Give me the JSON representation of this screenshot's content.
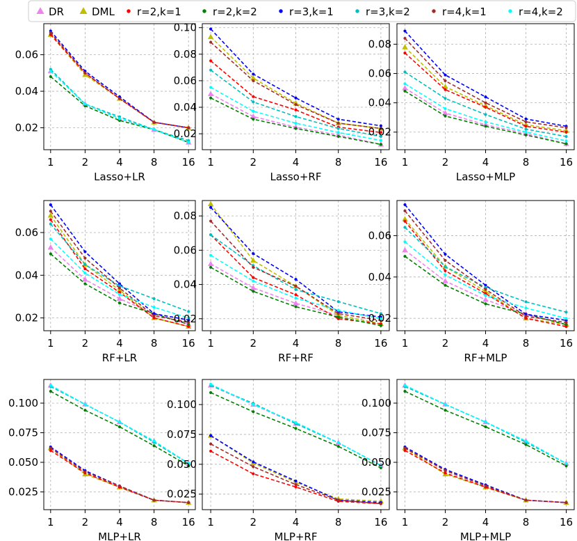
{
  "legend": {
    "items": [
      {
        "label": "DR",
        "color": "#ee82ee",
        "marker": "triangle"
      },
      {
        "label": "DML",
        "color": "#bfbf00",
        "marker": "triangle"
      },
      {
        "label": "r=2,k=1",
        "color": "#ff0000",
        "marker": "dot"
      },
      {
        "label": "r=2,k=2",
        "color": "#008000",
        "marker": "dot"
      },
      {
        "label": "r=3,k=1",
        "color": "#0000ff",
        "marker": "dot"
      },
      {
        "label": "r=3,k=2",
        "color": "#00bfbf",
        "marker": "dot"
      },
      {
        "label": "r=4,k=1",
        "color": "#a52a2a",
        "marker": "dot"
      },
      {
        "label": "r=4,k=2",
        "color": "#00ffff",
        "marker": "dot"
      }
    ]
  },
  "chart_data": [
    {
      "type": "line",
      "title": "",
      "xlabel": "Lasso+LR",
      "x": [
        1,
        2,
        4,
        8,
        16
      ],
      "xticks": [
        "1",
        "2",
        "4",
        "8",
        "16"
      ],
      "ylim": [
        0.008,
        0.077
      ],
      "yticks": [
        0.02,
        0.04,
        0.06
      ],
      "ytick_labels": [
        "0.02",
        "0.04",
        "0.06"
      ],
      "series": [
        {
          "name": "DR",
          "values": [
            0.051,
            0.033,
            0.025,
            0.019,
            0.012
          ]
        },
        {
          "name": "DML",
          "values": [
            0.071,
            0.049,
            0.036,
            0.023,
            0.02
          ]
        },
        {
          "name": "r=2,k=1",
          "values": [
            0.071,
            0.05,
            0.036,
            0.023,
            0.02
          ]
        },
        {
          "name": "r=2,k=2",
          "values": [
            0.048,
            0.032,
            0.024,
            0.019,
            0.012
          ]
        },
        {
          "name": "r=3,k=1",
          "values": [
            0.073,
            0.051,
            0.037,
            0.023,
            0.02
          ]
        },
        {
          "name": "r=3,k=2",
          "values": [
            0.052,
            0.033,
            0.026,
            0.019,
            0.013
          ]
        },
        {
          "name": "r=4,k=1",
          "values": [
            0.072,
            0.05,
            0.036,
            0.023,
            0.02
          ]
        },
        {
          "name": "r=4,k=2",
          "values": [
            0.051,
            0.033,
            0.025,
            0.019,
            0.012
          ]
        }
      ]
    },
    {
      "type": "line",
      "title": "",
      "xlabel": "Lasso+RF",
      "x": [
        1,
        2,
        4,
        8,
        16
      ],
      "xticks": [
        "1",
        "2",
        "4",
        "8",
        "16"
      ],
      "ylim": [
        0.008,
        0.103
      ],
      "yticks": [
        0.02,
        0.04,
        0.06,
        0.08,
        0.1
      ],
      "ytick_labels": [
        "0.02",
        "0.04",
        "0.06",
        "0.08",
        "0.10"
      ],
      "series": [
        {
          "name": "DR",
          "values": [
            0.05,
            0.033,
            0.025,
            0.019,
            0.012
          ]
        },
        {
          "name": "DML",
          "values": [
            0.093,
            0.062,
            0.043,
            0.028,
            0.024
          ]
        },
        {
          "name": "r=2,k=1",
          "values": [
            0.075,
            0.048,
            0.038,
            0.025,
            0.021
          ]
        },
        {
          "name": "r=2,k=2",
          "values": [
            0.047,
            0.031,
            0.024,
            0.018,
            0.012
          ]
        },
        {
          "name": "r=3,k=1",
          "values": [
            0.099,
            0.065,
            0.047,
            0.031,
            0.026
          ]
        },
        {
          "name": "r=3,k=2",
          "values": [
            0.068,
            0.044,
            0.033,
            0.024,
            0.018
          ]
        },
        {
          "name": "r=4,k=1",
          "values": [
            0.089,
            0.06,
            0.042,
            0.028,
            0.024
          ]
        },
        {
          "name": "r=4,k=2",
          "values": [
            0.055,
            0.037,
            0.028,
            0.021,
            0.015
          ]
        }
      ]
    },
    {
      "type": "line",
      "title": "",
      "xlabel": "Lasso+MLP",
      "x": [
        1,
        2,
        4,
        8,
        16
      ],
      "xticks": [
        "1",
        "2",
        "4",
        "8",
        "16"
      ],
      "ylim": [
        0.008,
        0.094
      ],
      "yticks": [
        0.02,
        0.04,
        0.06,
        0.08
      ],
      "ytick_labels": [
        "0.02",
        "0.04",
        "0.06",
        "0.08"
      ],
      "series": [
        {
          "name": "DR",
          "values": [
            0.05,
            0.033,
            0.025,
            0.019,
            0.012
          ]
        },
        {
          "name": "DML",
          "values": [
            0.078,
            0.051,
            0.038,
            0.025,
            0.021
          ]
        },
        {
          "name": "r=2,k=1",
          "values": [
            0.074,
            0.049,
            0.037,
            0.024,
            0.02
          ]
        },
        {
          "name": "r=2,k=2",
          "values": [
            0.048,
            0.031,
            0.024,
            0.018,
            0.012
          ]
        },
        {
          "name": "r=3,k=1",
          "values": [
            0.089,
            0.059,
            0.044,
            0.029,
            0.024
          ]
        },
        {
          "name": "r=3,k=2",
          "values": [
            0.061,
            0.043,
            0.032,
            0.022,
            0.017
          ]
        },
        {
          "name": "r=4,k=1",
          "values": [
            0.084,
            0.055,
            0.04,
            0.027,
            0.023
          ]
        },
        {
          "name": "r=4,k=2",
          "values": [
            0.053,
            0.036,
            0.027,
            0.02,
            0.014
          ]
        }
      ]
    },
    {
      "type": "line",
      "title": "",
      "xlabel": "RF+LR",
      "x": [
        1,
        2,
        4,
        8,
        16
      ],
      "xticks": [
        "1",
        "2",
        "4",
        "8",
        "16"
      ],
      "ylim": [
        0.014,
        0.075
      ],
      "yticks": [
        0.02,
        0.04,
        0.06
      ],
      "ytick_labels": [
        "0.02",
        "0.04",
        "0.06"
      ],
      "series": [
        {
          "name": "DR",
          "values": [
            0.053,
            0.038,
            0.029,
            0.022,
            0.017
          ]
        },
        {
          "name": "DML",
          "values": [
            0.068,
            0.045,
            0.033,
            0.02,
            0.016
          ]
        },
        {
          "name": "r=2,k=1",
          "values": [
            0.066,
            0.043,
            0.032,
            0.02,
            0.016
          ]
        },
        {
          "name": "r=2,k=2",
          "values": [
            0.05,
            0.036,
            0.027,
            0.022,
            0.017
          ]
        },
        {
          "name": "r=3,k=1",
          "values": [
            0.073,
            0.051,
            0.036,
            0.022,
            0.019
          ]
        },
        {
          "name": "r=3,k=2",
          "values": [
            0.064,
            0.045,
            0.035,
            0.029,
            0.023
          ]
        },
        {
          "name": "r=4,k=1",
          "values": [
            0.07,
            0.048,
            0.034,
            0.021,
            0.018
          ]
        },
        {
          "name": "r=4,k=2",
          "values": [
            0.057,
            0.041,
            0.031,
            0.025,
            0.02
          ]
        }
      ]
    },
    {
      "type": "line",
      "title": "",
      "xlabel": "RF+RF",
      "x": [
        1,
        2,
        4,
        8,
        16
      ],
      "xticks": [
        "1",
        "2",
        "4",
        "8",
        "16"
      ],
      "ylim": [
        0.013,
        0.089
      ],
      "yticks": [
        0.02,
        0.04,
        0.06,
        0.08
      ],
      "ytick_labels": [
        "0.02",
        "0.04",
        "0.06",
        "0.08"
      ],
      "series": [
        {
          "name": "DR",
          "values": [
            0.052,
            0.038,
            0.029,
            0.022,
            0.017
          ]
        },
        {
          "name": "DML",
          "values": [
            0.087,
            0.054,
            0.039,
            0.022,
            0.017
          ]
        },
        {
          "name": "r=2,k=1",
          "values": [
            0.069,
            0.044,
            0.034,
            0.02,
            0.017
          ]
        },
        {
          "name": "r=2,k=2",
          "values": [
            0.05,
            0.036,
            0.027,
            0.021,
            0.016
          ]
        },
        {
          "name": "r=3,k=1",
          "values": [
            0.085,
            0.058,
            0.043,
            0.024,
            0.021
          ]
        },
        {
          "name": "r=3,k=2",
          "values": [
            0.069,
            0.051,
            0.037,
            0.03,
            0.023
          ]
        },
        {
          "name": "r=4,k=1",
          "values": [
            0.077,
            0.05,
            0.039,
            0.023,
            0.019
          ]
        },
        {
          "name": "r=4,k=2",
          "values": [
            0.057,
            0.042,
            0.032,
            0.025,
            0.02
          ]
        }
      ]
    },
    {
      "type": "line",
      "title": "",
      "xlabel": "RF+MLP",
      "x": [
        1,
        2,
        4,
        8,
        16
      ],
      "xticks": [
        "1",
        "2",
        "4",
        "8",
        "16"
      ],
      "ylim": [
        0.014,
        0.077
      ],
      "yticks": [
        0.02,
        0.04,
        0.06
      ],
      "ytick_labels": [
        "0.02",
        "0.04",
        "0.06"
      ],
      "series": [
        {
          "name": "DR",
          "values": [
            0.053,
            0.038,
            0.029,
            0.022,
            0.017
          ]
        },
        {
          "name": "DML",
          "values": [
            0.068,
            0.045,
            0.033,
            0.02,
            0.017
          ]
        },
        {
          "name": "r=2,k=1",
          "values": [
            0.067,
            0.043,
            0.032,
            0.02,
            0.016
          ]
        },
        {
          "name": "r=2,k=2",
          "values": [
            0.05,
            0.036,
            0.027,
            0.022,
            0.017
          ]
        },
        {
          "name": "r=3,k=1",
          "values": [
            0.075,
            0.051,
            0.036,
            0.022,
            0.019
          ]
        },
        {
          "name": "r=3,k=2",
          "values": [
            0.064,
            0.045,
            0.035,
            0.028,
            0.023
          ]
        },
        {
          "name": "r=4,k=1",
          "values": [
            0.072,
            0.048,
            0.034,
            0.021,
            0.018
          ]
        },
        {
          "name": "r=4,k=2",
          "values": [
            0.057,
            0.041,
            0.031,
            0.025,
            0.02
          ]
        }
      ]
    },
    {
      "type": "line",
      "title": "",
      "xlabel": "MLP+LR",
      "x": [
        1,
        2,
        4,
        8,
        16
      ],
      "xticks": [
        "1",
        "2",
        "4",
        "8",
        "16"
      ],
      "ylim": [
        0.01,
        0.12
      ],
      "yticks": [
        0.025,
        0.05,
        0.075,
        0.1
      ],
      "ytick_labels": [
        "0.025",
        "0.050",
        "0.075",
        "0.100"
      ],
      "series": [
        {
          "name": "DR",
          "values": [
            0.115,
            0.099,
            0.084,
            0.068,
            0.049
          ]
        },
        {
          "name": "DML",
          "values": [
            0.062,
            0.04,
            0.029,
            0.018,
            0.016
          ]
        },
        {
          "name": "r=2,k=1",
          "values": [
            0.06,
            0.041,
            0.029,
            0.018,
            0.016
          ]
        },
        {
          "name": "r=2,k=2",
          "values": [
            0.11,
            0.094,
            0.08,
            0.064,
            0.047
          ]
        },
        {
          "name": "r=3,k=1",
          "values": [
            0.063,
            0.043,
            0.03,
            0.018,
            0.016
          ]
        },
        {
          "name": "r=3,k=2",
          "values": [
            0.114,
            0.099,
            0.084,
            0.067,
            0.049
          ]
        },
        {
          "name": "r=4,k=1",
          "values": [
            0.062,
            0.042,
            0.03,
            0.018,
            0.016
          ]
        },
        {
          "name": "r=4,k=2",
          "values": [
            0.115,
            0.099,
            0.084,
            0.068,
            0.049
          ]
        }
      ]
    },
    {
      "type": "line",
      "title": "",
      "xlabel": "MLP+RF",
      "x": [
        1,
        2,
        4,
        8,
        16
      ],
      "xticks": [
        "1",
        "2",
        "4",
        "8",
        "16"
      ],
      "ylim": [
        0.012,
        0.121
      ],
      "yticks": [
        0.025,
        0.05,
        0.075,
        0.1
      ],
      "ytick_labels": [
        "0.025",
        "0.050",
        "0.075",
        "0.100"
      ],
      "series": [
        {
          "name": "DR",
          "values": [
            0.116,
            0.1,
            0.084,
            0.068,
            0.049
          ]
        },
        {
          "name": "DML",
          "values": [
            0.074,
            0.051,
            0.035,
            0.021,
            0.019
          ]
        },
        {
          "name": "r=2,k=1",
          "values": [
            0.061,
            0.042,
            0.031,
            0.019,
            0.017
          ]
        },
        {
          "name": "r=2,k=2",
          "values": [
            0.11,
            0.094,
            0.08,
            0.065,
            0.047
          ]
        },
        {
          "name": "r=3,k=1",
          "values": [
            0.074,
            0.052,
            0.036,
            0.02,
            0.018
          ]
        },
        {
          "name": "r=3,k=2",
          "values": [
            0.116,
            0.101,
            0.084,
            0.068,
            0.049
          ]
        },
        {
          "name": "r=4,k=1",
          "values": [
            0.067,
            0.048,
            0.033,
            0.02,
            0.017
          ]
        },
        {
          "name": "r=4,k=2",
          "values": [
            0.117,
            0.1,
            0.085,
            0.068,
            0.049
          ]
        }
      ]
    },
    {
      "type": "line",
      "title": "",
      "xlabel": "MLP+MLP",
      "x": [
        1,
        2,
        4,
        8,
        16
      ],
      "xticks": [
        "1",
        "2",
        "4",
        "8",
        "16"
      ],
      "ylim": [
        0.01,
        0.12
      ],
      "yticks": [
        0.025,
        0.05,
        0.075,
        0.1
      ],
      "ytick_labels": [
        "0.025",
        "0.050",
        "0.075",
        "0.100"
      ],
      "series": [
        {
          "name": "DR",
          "values": [
            0.115,
            0.099,
            0.084,
            0.068,
            0.049
          ]
        },
        {
          "name": "DML",
          "values": [
            0.062,
            0.04,
            0.029,
            0.018,
            0.016
          ]
        },
        {
          "name": "r=2,k=1",
          "values": [
            0.06,
            0.041,
            0.029,
            0.018,
            0.016
          ]
        },
        {
          "name": "r=2,k=2",
          "values": [
            0.11,
            0.094,
            0.08,
            0.065,
            0.047
          ]
        },
        {
          "name": "r=3,k=1",
          "values": [
            0.063,
            0.044,
            0.031,
            0.018,
            0.016
          ]
        },
        {
          "name": "r=3,k=2",
          "values": [
            0.114,
            0.099,
            0.084,
            0.067,
            0.049
          ]
        },
        {
          "name": "r=4,k=1",
          "values": [
            0.062,
            0.043,
            0.03,
            0.018,
            0.016
          ]
        },
        {
          "name": "r=4,k=2",
          "values": [
            0.115,
            0.099,
            0.084,
            0.068,
            0.049
          ]
        }
      ]
    }
  ]
}
